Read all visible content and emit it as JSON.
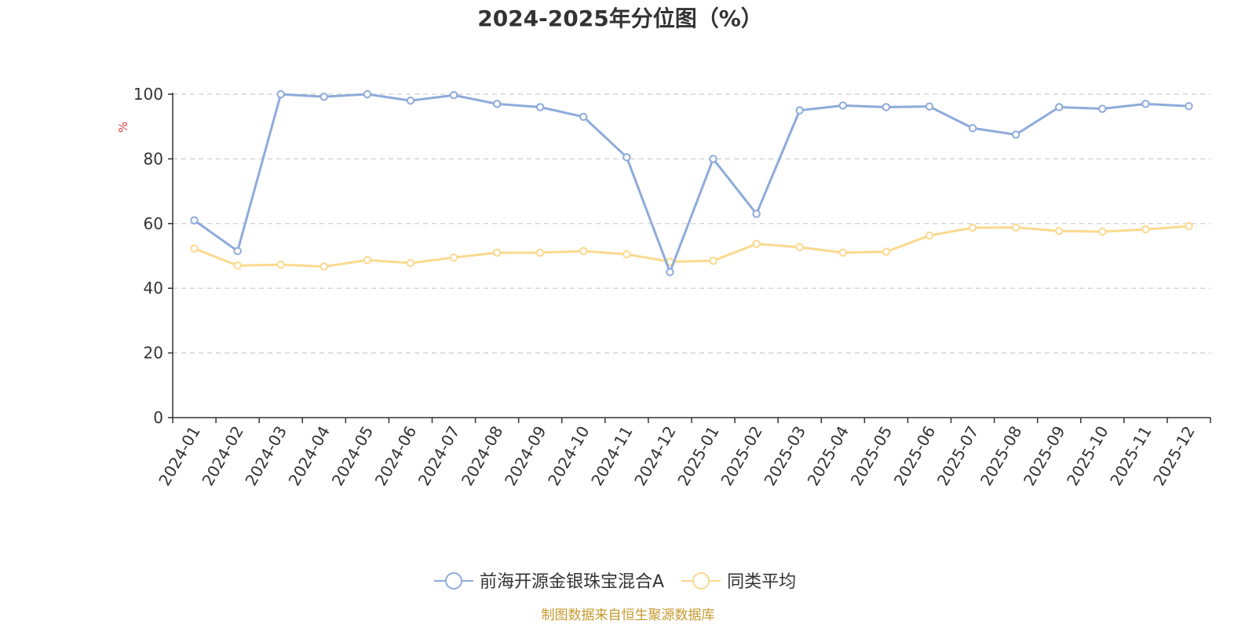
{
  "chart_data": {
    "type": "line",
    "title": "2024-2025年分位图（%）",
    "ylabel": "%",
    "xlabel": "",
    "ylim": [
      0,
      100
    ],
    "yticks": [
      0,
      20,
      40,
      60,
      80,
      100
    ],
    "grid": true,
    "legend_position": "bottom",
    "categories": [
      "2024-01",
      "2024-02",
      "2024-03",
      "2024-04",
      "2024-05",
      "2024-06",
      "2024-07",
      "2024-08",
      "2024-09",
      "2024-10",
      "2024-11",
      "2024-12",
      "2025-01",
      "2025-02",
      "2025-03",
      "2025-04",
      "2025-05",
      "2025-06",
      "2025-07",
      "2025-08",
      "2025-09",
      "2025-10",
      "2025-11",
      "2025-12"
    ],
    "series": [
      {
        "name": "前海开源金银珠宝混合A",
        "color": "#8eabda",
        "values": [
          61,
          51.5,
          100,
          99.2,
          100,
          98,
          99.7,
          97,
          96,
          93,
          80.5,
          45,
          80,
          63,
          95,
          96.5,
          96,
          96.2,
          89.5,
          87.5,
          96,
          95.5,
          97,
          96.3
        ]
      },
      {
        "name": "同类平均",
        "color": "#fbd98e",
        "values": [
          52.3,
          47,
          47.3,
          46.7,
          48.7,
          47.8,
          49.5,
          51,
          51,
          51.5,
          50.5,
          48.2,
          48.5,
          53.7,
          52.7,
          51,
          51.3,
          56.3,
          58.7,
          58.8,
          57.7,
          57.5,
          58.2,
          59.2
        ]
      }
    ]
  },
  "footer": {
    "source": "制图数据来自恒生聚源数据库"
  },
  "colors": {
    "axis": "#333333",
    "grid": "#cccccc",
    "unit_label": "#e03c3c",
    "source": "#c59a2f"
  }
}
